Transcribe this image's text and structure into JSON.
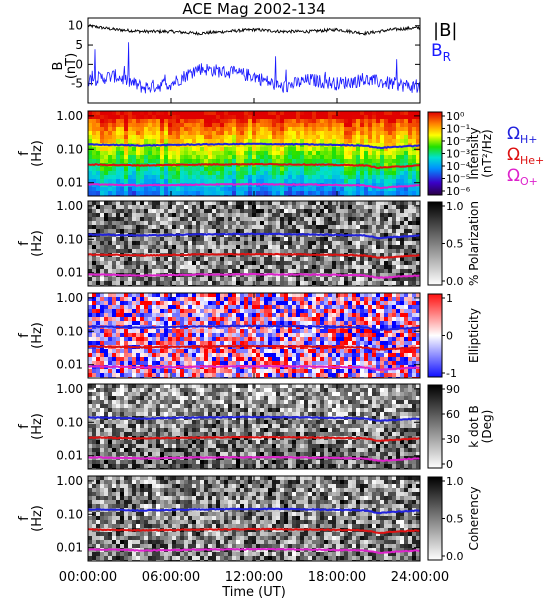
{
  "title": "ACE Mag 2002-134",
  "xlabel": "Time (UT)",
  "xticks": [
    "00:00:00",
    "06:00:00",
    "12:00:00",
    "18:00:00",
    "24:00:00"
  ],
  "top_panel": {
    "ylabel": "B\n(nT)",
    "yticks": [
      "10",
      "5",
      "0",
      "-5"
    ],
    "legend": [
      {
        "label": "|B|",
        "color": "#000000"
      },
      {
        "label": "B",
        "sub": "R",
        "color": "#1a1aff"
      }
    ]
  },
  "freq_yticks": [
    "1.00",
    "0.10",
    "0.01"
  ],
  "freq_ylabel": [
    "f",
    "(Hz)"
  ],
  "cyclotron": [
    {
      "label": "Ω",
      "sub": "H+",
      "color": "#2222dd"
    },
    {
      "label": "Ω",
      "sub": "He+",
      "color": "#dd1111"
    },
    {
      "label": "Ω",
      "sub": "O+",
      "color": "#dd22cc"
    }
  ],
  "colorbars": [
    {
      "label": "Intensity\n(nT²/Hz)",
      "ticks": [
        "10⁰",
        "10⁻¹",
        "10⁻²",
        "10⁻³",
        "10⁻⁴",
        "10⁻⁵",
        "10⁻⁶"
      ],
      "colormap": "rainbow"
    },
    {
      "label": "% Polarization",
      "ticks": [
        "1.0",
        "0.5",
        "0.0"
      ],
      "colormap": "gray"
    },
    {
      "label": "Ellipticity",
      "ticks": [
        "1",
        "0",
        "-1"
      ],
      "colormap": "bwr"
    },
    {
      "label": "k dot B\n(Deg)",
      "ticks": [
        "90",
        "60",
        "30",
        "0"
      ],
      "colormap": "gray"
    },
    {
      "label": "Coherency",
      "ticks": [
        "1.0",
        "0.5",
        "0.0"
      ],
      "colormap": "gray"
    }
  ],
  "chart_data": [
    {
      "type": "line",
      "x_range": [
        0,
        24
      ],
      "ylim": [
        -10,
        12
      ],
      "series": [
        {
          "name": "|B|",
          "color": "#000000",
          "x": [
            0,
            2,
            4,
            6,
            8,
            10,
            12,
            14,
            16,
            18,
            20,
            22,
            24
          ],
          "values": [
            10,
            9,
            8.5,
            8.5,
            8,
            8.5,
            9,
            8.5,
            8.5,
            9,
            8,
            9,
            9.5
          ]
        },
        {
          "name": "BR",
          "color": "#1a1aff",
          "x": [
            0,
            2,
            4,
            6,
            8,
            10,
            12,
            14,
            16,
            18,
            20,
            22,
            24
          ],
          "values": [
            -4,
            -3,
            -6,
            -5,
            -1,
            -2,
            -3,
            -6,
            -4,
            -5,
            -4,
            -5,
            -6
          ]
        }
      ]
    },
    {
      "type": "heatmap",
      "panels": [
        "Intensity",
        "% Polarization",
        "Ellipticity",
        "k dot B",
        "Coherency"
      ],
      "y_scale": "log",
      "ylim_hz": [
        0.004,
        1.4
      ],
      "cyclotron_frequency_hz": [
        {
          "name": "ΩH+",
          "x": [
            0,
            4,
            8,
            12,
            16,
            20,
            21,
            24
          ],
          "values": [
            0.14,
            0.13,
            0.14,
            0.145,
            0.14,
            0.13,
            0.11,
            0.13
          ]
        },
        {
          "name": "ΩHe+",
          "x": [
            0,
            4,
            8,
            12,
            16,
            20,
            21,
            24
          ],
          "values": [
            0.035,
            0.033,
            0.035,
            0.036,
            0.035,
            0.033,
            0.028,
            0.033
          ]
        },
        {
          "name": "ΩO+",
          "x": [
            0,
            4,
            8,
            12,
            16,
            20,
            21,
            24
          ],
          "values": [
            0.009,
            0.0083,
            0.0088,
            0.009,
            0.0088,
            0.0083,
            0.007,
            0.0083
          ]
        }
      ]
    }
  ]
}
